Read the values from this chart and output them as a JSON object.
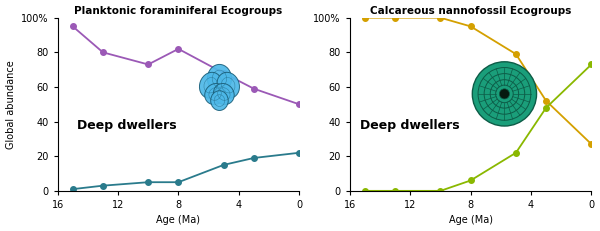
{
  "left_title": "Planktonic foraminiferal Ecogroups",
  "right_title": "Calcareous nannofossil Ecogroups",
  "ylabel": "Global abundance",
  "xlabel": "Age (Ma)",
  "xlim": [
    16,
    0
  ],
  "ylim": [
    0,
    100
  ],
  "yticks": [
    0,
    20,
    40,
    60,
    80,
    100
  ],
  "ytick_labels": [
    "0",
    "20",
    "40",
    "60",
    "80",
    "100%"
  ],
  "xticks": [
    16,
    12,
    8,
    4,
    0
  ],
  "deep_dwellers_label": "Deep dwellers",
  "left_purple_x": [
    15,
    13,
    10,
    8,
    5,
    3,
    0
  ],
  "left_purple_y": [
    95,
    80,
    73,
    82,
    68,
    59,
    50
  ],
  "left_purple_color": "#9b59b6",
  "left_teal_x": [
    15,
    13,
    10,
    8,
    5,
    3,
    0
  ],
  "left_teal_y": [
    1,
    3,
    5,
    5,
    15,
    19,
    22
  ],
  "left_teal_color": "#2a7b8c",
  "right_yellow_x": [
    15,
    13,
    10,
    8,
    5,
    3,
    0
  ],
  "right_yellow_y": [
    100,
    100,
    100,
    95,
    79,
    52,
    27
  ],
  "right_yellow_color": "#d4a000",
  "right_green_x": [
    15,
    13,
    10,
    8,
    5,
    3,
    0
  ],
  "right_green_y": [
    0,
    0,
    0,
    6,
    22,
    48,
    73
  ],
  "right_green_color": "#8ab800",
  "marker_size": 4,
  "linewidth": 1.3,
  "left_bio_color": "#4db8e8",
  "left_bio_outline": "#1a5f7a",
  "right_bio_color": "#1a9e7a",
  "right_bio_outline": "#0d5c47"
}
